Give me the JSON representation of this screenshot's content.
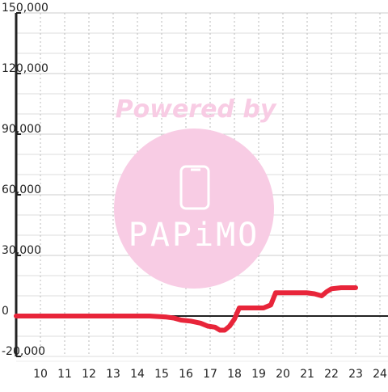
{
  "chart_data": {
    "type": "line",
    "x_ticks": [
      10,
      11,
      12,
      13,
      14,
      15,
      16,
      17,
      18,
      19,
      20,
      21,
      22,
      23,
      24
    ],
    "x_tick_labels": [
      "10",
      "11",
      "12",
      "13",
      "14",
      "15",
      "16",
      "17",
      "18",
      "19",
      "20",
      "21",
      "22",
      "23",
      "24"
    ],
    "y_ticks": [
      -20000,
      0,
      30000,
      60000,
      90000,
      120000,
      150000
    ],
    "y_tick_labels": [
      "-20,000",
      "0",
      "30,000",
      "60,000",
      "90,000",
      "120,000",
      "150,000"
    ],
    "xlim": [
      9,
      24.3
    ],
    "ylim": [
      -20000,
      150000
    ],
    "grid": true,
    "series": [
      {
        "color": "#e8253a",
        "x": [
          9.0,
          14.5,
          15.2,
          15.5,
          15.8,
          16.2,
          16.6,
          16.9,
          17.2,
          17.4,
          17.6,
          17.8,
          18.0,
          18.2,
          18.5,
          18.8,
          19.2,
          19.5,
          19.7,
          20.0,
          20.5,
          21.0,
          21.3,
          21.6,
          21.8,
          22.0,
          22.4,
          23.0
        ],
        "y": [
          0,
          0,
          -500,
          -1000,
          -2000,
          -2500,
          -3500,
          -5000,
          -5500,
          -7000,
          -7000,
          -5000,
          -1500,
          4000,
          4000,
          4000,
          4000,
          5500,
          11500,
          11500,
          11500,
          11500,
          11000,
          10000,
          12000,
          13500,
          14000,
          14000
        ]
      }
    ],
    "watermark": {
      "line1": "Powered by",
      "line2": "PAPiMO"
    }
  },
  "colors": {
    "line": "#e8253a",
    "watermark": "#f8cce4",
    "axis": "#222222",
    "grid_major": "#cccccc",
    "grid_minor": "#dddddd"
  }
}
